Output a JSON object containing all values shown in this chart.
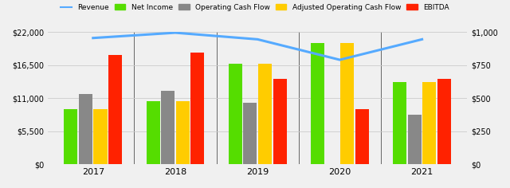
{
  "years": [
    2017,
    2018,
    2019,
    2020,
    2021
  ],
  "net_income": [
    9200,
    10500,
    16700,
    20200,
    13700
  ],
  "operating_cash_flow": [
    11700,
    12200,
    10200,
    80,
    8200
  ],
  "adj_operating_cash_flow": [
    9200,
    10500,
    16700,
    20200,
    13700
  ],
  "ebitda": [
    18200,
    18600,
    14200,
    9200,
    14200
  ],
  "revenue_right": [
    955,
    995,
    945,
    790,
    945
  ],
  "bar_width": 0.18,
  "ylim_left": [
    0,
    22000
  ],
  "ylim_right": [
    0,
    1000
  ],
  "yticks_left": [
    0,
    5500,
    11000,
    16500,
    22000
  ],
  "ytick_labels_left": [
    "$0",
    "$5,500",
    "$11,000",
    "$16,500",
    "$22,000"
  ],
  "yticks_right": [
    0,
    250,
    500,
    750,
    1000
  ],
  "ytick_labels_right": [
    "$0",
    "$250",
    "$500",
    "$750",
    "$1,000"
  ],
  "color_net_income": "#55dd00",
  "color_operating_cf": "#888888",
  "color_adj_operating_cash_flow": "#ffcc00",
  "color_ebitda": "#ff2200",
  "color_revenue_line": "#55aaff",
  "color_gridlines": "#cccccc",
  "color_separators": "#666666",
  "background_color": "#f0f0f0",
  "legend_labels": [
    "Revenue",
    "Net Income",
    "Operating Cash Flow",
    "Adjusted Operating Cash Flow",
    "EBITDA"
  ],
  "fig_width": 6.4,
  "fig_height": 2.36,
  "xlim": [
    2016.45,
    2021.55
  ]
}
